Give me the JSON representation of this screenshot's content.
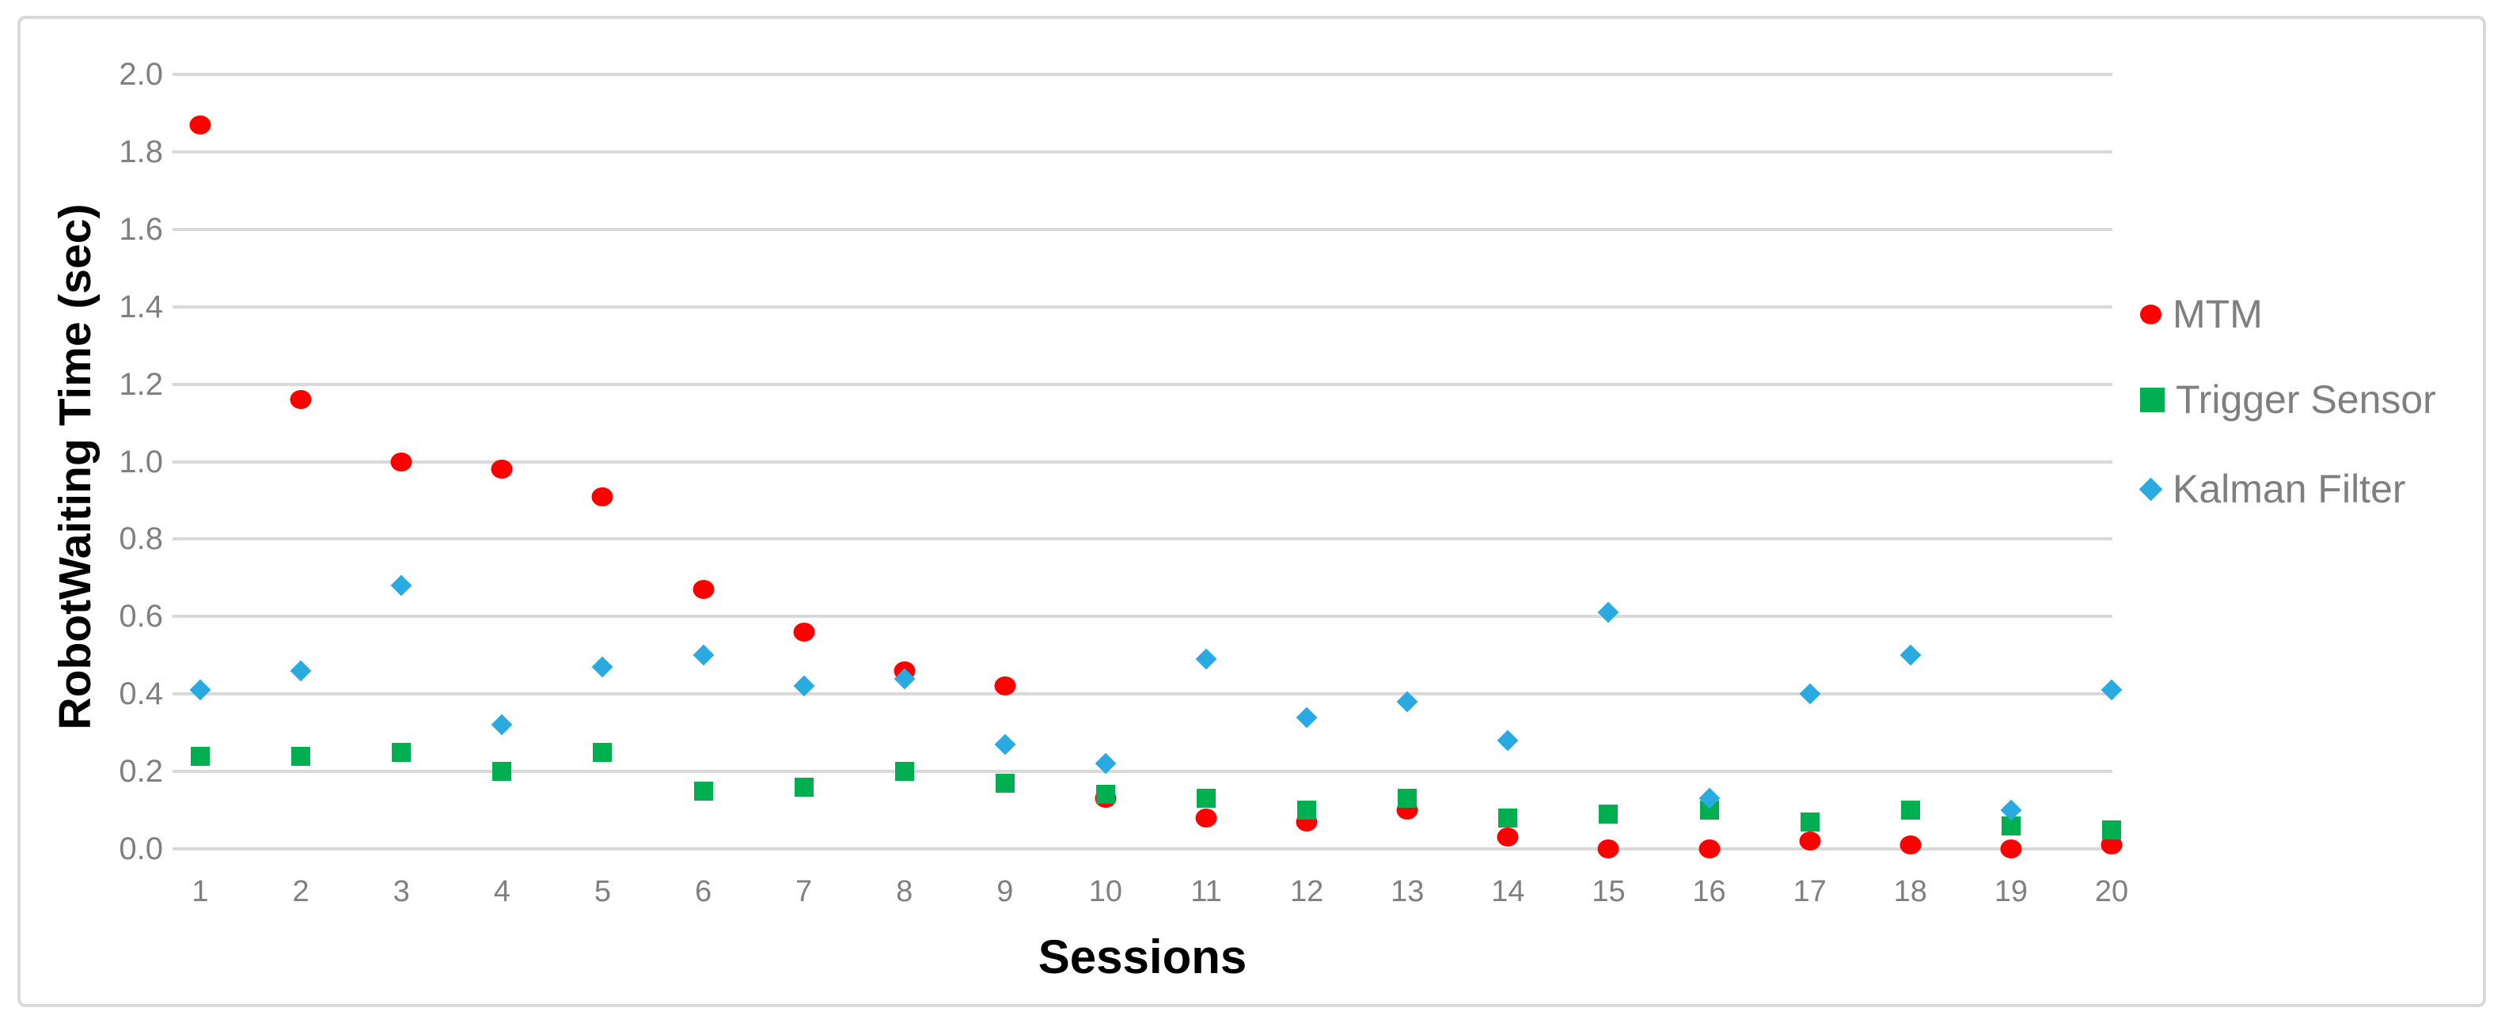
{
  "chart_data": {
    "type": "scatter",
    "title": "",
    "xlabel": "Sessions",
    "ylabel": "RobotWaiting Time (sec)",
    "x": [
      1,
      2,
      3,
      4,
      5,
      6,
      7,
      8,
      9,
      10,
      11,
      12,
      13,
      14,
      15,
      16,
      17,
      18,
      19,
      20
    ],
    "xtick_labels": [
      "1",
      "2",
      "3",
      "4",
      "5",
      "6",
      "7",
      "8",
      "9",
      "10",
      "11",
      "12",
      "13",
      "14",
      "15",
      "16",
      "17",
      "18",
      "19",
      "20"
    ],
    "ylim": [
      0.0,
      2.0
    ],
    "ytick_step": 0.2,
    "ytick_labels": [
      "2.0",
      "1.8",
      "1.6",
      "1.4",
      "1.2",
      "1.0",
      "0.8",
      "0.6",
      "0.4",
      "0.2",
      "0.0"
    ],
    "grid": true,
    "legend_position": "right",
    "series": [
      {
        "name": "MTM",
        "key": "mtm",
        "marker": "circle",
        "color": "#ff0000",
        "values": [
          1.87,
          1.16,
          1.0,
          0.98,
          0.91,
          0.67,
          0.56,
          0.46,
          0.42,
          0.13,
          0.08,
          0.07,
          0.1,
          0.03,
          0.0,
          0.0,
          0.02,
          0.01,
          0.0,
          0.01
        ]
      },
      {
        "name": "Trigger Sensor",
        "key": "trigger-sensor",
        "marker": "square",
        "color": "#00b050",
        "values": [
          0.24,
          0.24,
          0.25,
          0.2,
          0.25,
          0.15,
          0.16,
          0.2,
          0.17,
          0.14,
          0.13,
          0.1,
          0.13,
          0.08,
          0.09,
          0.1,
          0.07,
          0.1,
          0.06,
          0.05
        ]
      },
      {
        "name": "Kalman Filter",
        "key": "kalman-filter",
        "marker": "diamond",
        "color": "#29abe2",
        "values": [
          0.41,
          0.46,
          0.68,
          0.32,
          0.47,
          0.5,
          0.42,
          0.44,
          0.27,
          0.22,
          0.49,
          0.34,
          0.38,
          0.28,
          0.61,
          0.13,
          0.4,
          0.5,
          0.1,
          0.41
        ]
      }
    ]
  },
  "colors": {
    "gridline": "#d9d9d9",
    "tick_label": "#808080",
    "legend_text": "#7f7f7f",
    "axis_title": "#000000",
    "frame_border": "#d9d9d9",
    "background": "#ffffff"
  }
}
